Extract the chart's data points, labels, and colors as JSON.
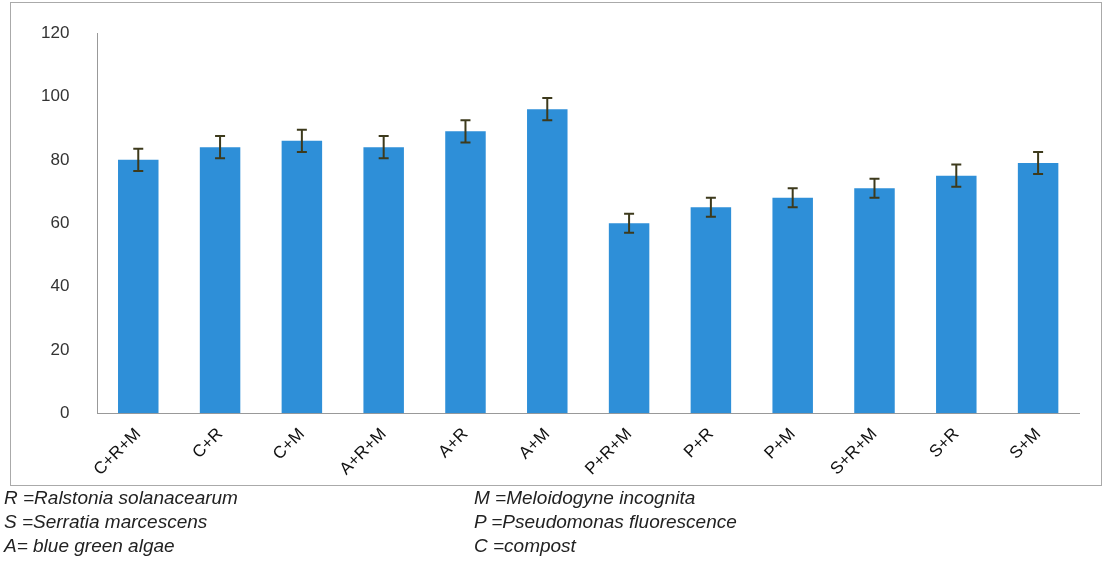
{
  "chart_data": {
    "type": "bar",
    "categories": [
      "C+R+M",
      "C+R",
      "C+M",
      "A+R+M",
      "A+R",
      "A+M",
      "P+R+M",
      "P+R",
      "P+M",
      "S+R+M",
      "S+R",
      "S+M"
    ],
    "values": [
      80,
      84,
      86,
      84,
      89,
      96,
      60,
      65,
      68,
      71,
      75,
      79
    ],
    "errors": [
      3.5,
      3.5,
      3.5,
      3.5,
      3.5,
      3.5,
      3,
      3,
      3,
      3,
      3.5,
      3.5
    ],
    "color": "#2e8fd8",
    "ylim": [
      0,
      120
    ],
    "yticks": [
      0,
      20,
      40,
      60,
      80,
      100,
      120
    ],
    "grid": false,
    "legend": false,
    "annotations": [
      "R =Ralstonia  solanacearum",
      "M =Meloidogyne  incognita",
      "S =Serratia  marcescens",
      "P =Pseudomonas fluorescence",
      "A= blue green algae",
      "C =compost"
    ]
  }
}
